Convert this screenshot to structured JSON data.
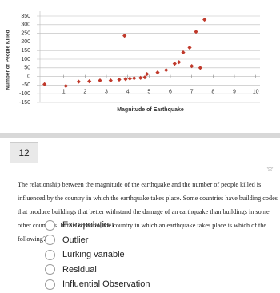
{
  "chart_data": {
    "type": "scatter",
    "y_label": "Number of People Killed",
    "x_label": "Magnitude of Earthquake",
    "x": [
      0.1,
      1.1,
      1.7,
      2.2,
      2.7,
      3.2,
      3.6,
      3.9,
      4.1,
      4.3,
      4.6,
      4.8,
      3.85,
      4.9,
      5.4,
      5.8,
      6.2,
      6.4,
      6.6,
      6.9,
      7.2,
      7.6,
      7.0,
      7.4
    ],
    "y": [
      -45,
      -55,
      -30,
      -28,
      -23,
      -23,
      -18,
      -15,
      -12,
      -10,
      -8,
      -5,
      236,
      14,
      23,
      37,
      74,
      83,
      139,
      167,
      259,
      329,
      60,
      50
    ],
    "color": "#c0392b",
    "xlim": [
      0,
      10.2
    ],
    "ylim": [
      -150,
      350
    ],
    "xticks": [
      1,
      2,
      3,
      4,
      5,
      6,
      7,
      8,
      9,
      10
    ],
    "yticks": [
      350,
      300,
      250,
      200,
      150,
      100,
      50,
      0,
      -50,
      -100,
      -150
    ],
    "grid": true
  },
  "question": {
    "number": "12",
    "text": "The relationship between the magnitude of the earthquake and the number of people killed is influenced by the country in which the earthquake takes place. Some countries have building codes that produce buildings that better withstand the damage of an earthquake than buildings in some other countries. In this scenario, the country in which an earthquake takes place is which of the following?",
    "options": [
      "Extrapolation",
      "Outlier",
      "Lurking variable",
      "Residual",
      "Influential Observation"
    ]
  }
}
